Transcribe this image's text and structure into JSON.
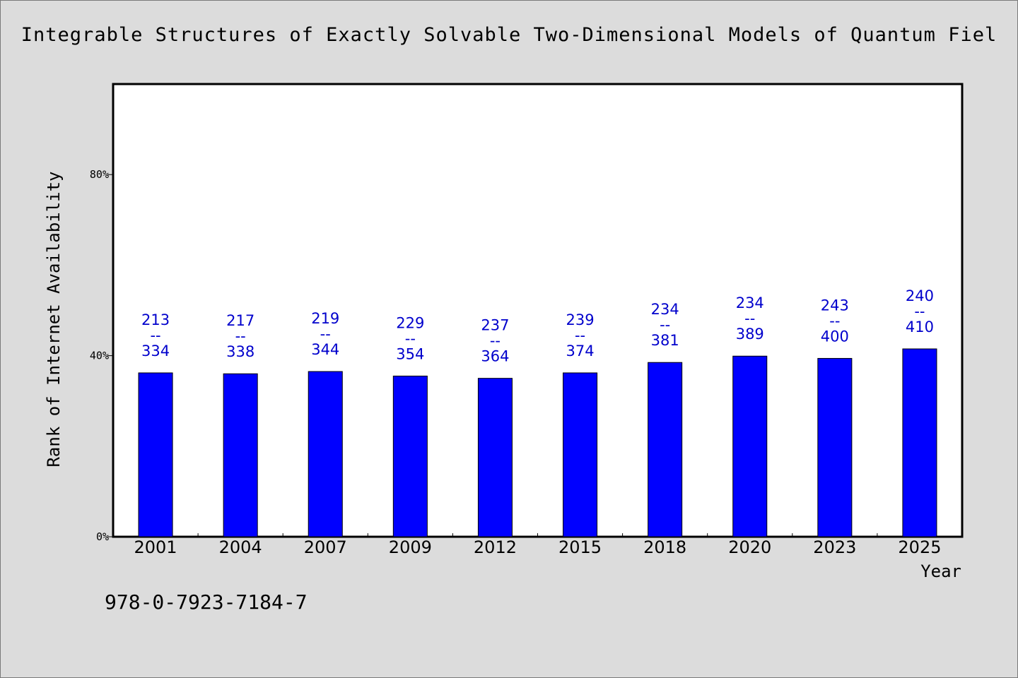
{
  "page": {
    "title": "Integrable Structures of Exactly Solvable Two-Dimensional Models of Quantum Fiel",
    "footer_code": "978-0-7923-7184-7"
  },
  "chart_data": {
    "type": "bar",
    "title": "Integrable Structures of Exactly Solvable Two-Dimensional Models of Quantum Fiel",
    "xlabel": "Year",
    "ylabel": "Rank of Internet Availability",
    "categories": [
      "2001",
      "2004",
      "2007",
      "2009",
      "2012",
      "2015",
      "2018",
      "2020",
      "2023",
      "2025"
    ],
    "series": [
      {
        "values": [
          0.362,
          0.36,
          0.365,
          0.355,
          0.35,
          0.362,
          0.385,
          0.399,
          0.394,
          0.415
        ],
        "color": "#0000ff",
        "labels_top": [
          "213",
          "217",
          "219",
          "229",
          "237",
          "239",
          "234",
          "234",
          "243",
          "240"
        ],
        "labels_sep": "--",
        "labels_bottom": [
          "334",
          "338",
          "344",
          "354",
          "364",
          "374",
          "381",
          "389",
          "400",
          "410"
        ]
      }
    ],
    "ylim": [
      0,
      1.0
    ],
    "yticks": [
      0,
      0.4,
      0.8
    ],
    "ytick_labels": [
      "0%",
      "40%",
      "80%"
    ],
    "grid": false,
    "legend": "none",
    "colors": {
      "bar": "#0000ff",
      "label": "#0000cc",
      "background": "#dcdcdc",
      "plot_background": "#ffffff"
    }
  }
}
